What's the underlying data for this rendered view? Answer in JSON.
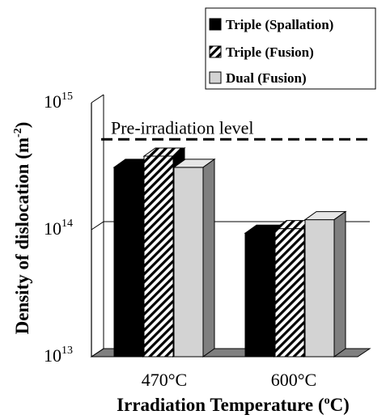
{
  "chart_data": {
    "type": "bar",
    "categories": [
      "470°C",
      "600°C"
    ],
    "series": [
      {
        "name": "Triple (Spallation)",
        "values": [
          310000000000000.0,
          94000000000000.0
        ],
        "color": "#000000",
        "pattern": "solid-black"
      },
      {
        "name": "Triple (Fusion)",
        "values": [
          380000000000000.0,
          102000000000000.0
        ],
        "color": "#ffffff",
        "pattern": "diagonal-hatch"
      },
      {
        "name": "Dual (Fusion)",
        "values": [
          310000000000000.0,
          120000000000000.0
        ],
        "color": "#d3d3d3",
        "pattern": "solid-light-gray"
      }
    ],
    "ylabel_main": "Density of dislocation (m",
    "ylabel_sup": "-2",
    "ylabel_end": ")",
    "xlabel_main": "Irradiation Temperature (",
    "xlabel_sup": "o",
    "xlabel_end": "C)",
    "yscale": "log",
    "ylim": [
      10000000000000.0,
      1000000000000000.0
    ],
    "yticks": [
      {
        "value": 10000000000000.0,
        "base": "10",
        "exp": "13"
      },
      {
        "value": 100000000000000.0,
        "base": "10",
        "exp": "14"
      },
      {
        "value": 1000000000000000.0,
        "base": "10",
        "exp": "15"
      }
    ],
    "annotation": {
      "label": "Pre-irradiation level",
      "value": 500000000000000.0,
      "style": "dashed"
    },
    "legend_position": "top-right",
    "style": "3d-bars"
  }
}
